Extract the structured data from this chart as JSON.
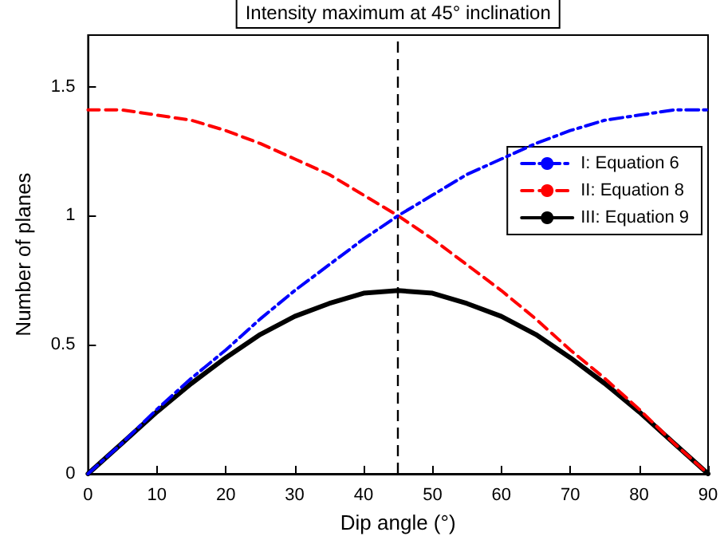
{
  "chart_data": {
    "type": "line",
    "xlabel": "Dip angle (°)",
    "ylabel": "Number of planes",
    "x": [
      0,
      5,
      10,
      15,
      20,
      25,
      30,
      35,
      40,
      45,
      50,
      55,
      60,
      65,
      70,
      75,
      80,
      85,
      90
    ],
    "series": [
      {
        "name": "I: Equation 6",
        "color": "#0000ff",
        "line_style": "dashdot",
        "values": [
          0,
          0.12,
          0.25,
          0.37,
          0.48,
          0.6,
          0.71,
          0.81,
          0.91,
          1.0,
          1.08,
          1.16,
          1.22,
          1.28,
          1.33,
          1.37,
          1.39,
          1.41,
          1.41
        ]
      },
      {
        "name": "II: Equation 8",
        "color": "#ff0000",
        "line_style": "dashed",
        "values": [
          1.41,
          1.41,
          1.39,
          1.37,
          1.33,
          1.28,
          1.22,
          1.16,
          1.08,
          1.0,
          0.91,
          0.81,
          0.71,
          0.6,
          0.48,
          0.37,
          0.25,
          0.12,
          0
        ]
      },
      {
        "name": "III: Equation 9",
        "color": "#000000",
        "line_style": "solid",
        "values": [
          0,
          0.12,
          0.24,
          0.35,
          0.45,
          0.54,
          0.61,
          0.66,
          0.7,
          0.71,
          0.7,
          0.66,
          0.61,
          0.54,
          0.45,
          0.35,
          0.24,
          0.12,
          0
        ]
      }
    ],
    "xlim": [
      0,
      90
    ],
    "xticks": [
      0,
      10,
      20,
      30,
      40,
      50,
      60,
      70,
      80,
      90
    ],
    "ylim": [
      0,
      1.7
    ],
    "yticks": [
      0,
      0.5,
      1,
      1.5
    ],
    "ref_lines": [
      {
        "axis": "x",
        "value": 45,
        "label": "Intensity maximum at 45° inclination",
        "color": "#000000",
        "line_style": "dashed"
      }
    ],
    "grid": false,
    "legend": "right",
    "marker": "none"
  }
}
